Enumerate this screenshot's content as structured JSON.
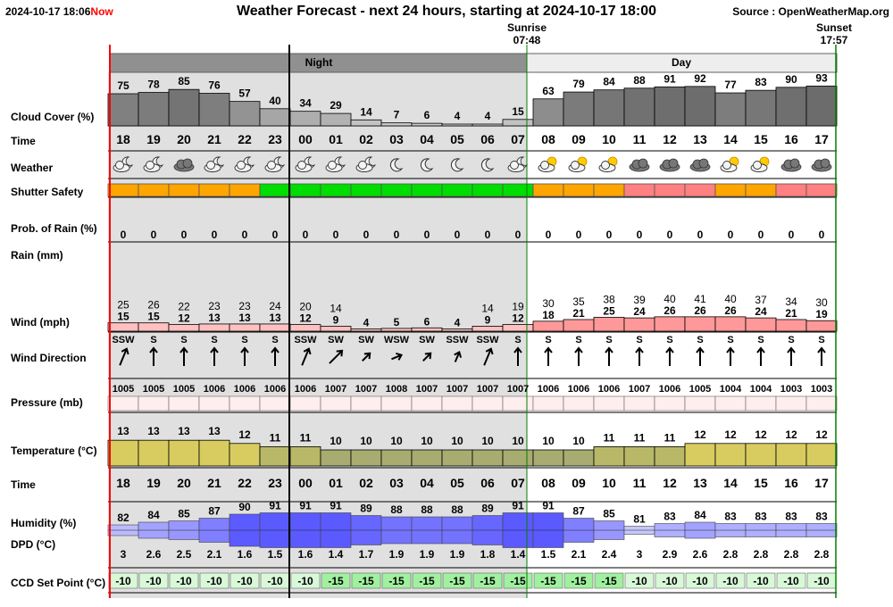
{
  "header": {
    "datetime": "2024-10-17 18:06",
    "now_label": "Now",
    "title": "Weather Forecast - next 24 hours, starting at 2024-10-17 18:00",
    "source": "Source : OpenWeatherMap.org"
  },
  "sun": {
    "sunrise_label": "Sunrise",
    "sunrise_time": "07:48",
    "sunset_label": "Sunset",
    "sunset_time": "17:57"
  },
  "periods": {
    "night": "Night",
    "day": "Day"
  },
  "row_labels": {
    "cloud": "Cloud Cover (%)",
    "time": "Time",
    "weather": "Weather",
    "shutter": "Shutter Safety",
    "prob_rain": "Prob. of Rain (%)",
    "rain": "Rain (mm)",
    "wind": "Wind (mph)",
    "wind_dir": "Wind Direction",
    "pressure": "Pressure (mb)",
    "temperature": "Temperature (°C)",
    "time2": "Time",
    "humidity": "Humidity (%)",
    "dpd": "DPD (°C)",
    "ccd": "CCD Set Point (°C)"
  },
  "colors": {
    "shutter_orange": "#ffa500",
    "shutter_green": "#00dd00",
    "shutter_red": "#ff8080",
    "night_bg": "#e0e0e0",
    "gust_fill": "#ffc0c0",
    "gust_fill_strong": "#ff9999",
    "now_line": "#ff0000",
    "day_border": "#008000"
  },
  "chart_data": {
    "type": "table",
    "hours": [
      "18",
      "19",
      "20",
      "21",
      "22",
      "23",
      "00",
      "01",
      "02",
      "03",
      "04",
      "05",
      "06",
      "07",
      "08",
      "09",
      "10",
      "11",
      "12",
      "13",
      "14",
      "15",
      "16",
      "17"
    ],
    "cloud_cover": [
      75,
      78,
      85,
      76,
      57,
      40,
      34,
      29,
      14,
      7,
      6,
      4,
      4,
      15,
      63,
      79,
      84,
      88,
      91,
      92,
      77,
      83,
      90,
      93
    ],
    "weather_icons": [
      "partly-cloudy-night",
      "partly-cloudy-night",
      "cloudy",
      "partly-cloudy-night",
      "partly-cloudy-night",
      "partly-cloudy-night",
      "partly-cloudy-night",
      "partly-cloudy-night",
      "partly-cloudy-night",
      "clear-night",
      "clear-night",
      "clear-night",
      "clear-night",
      "partly-cloudy-night",
      "partly-cloudy-day",
      "partly-cloudy-day",
      "partly-cloudy-day",
      "cloudy",
      "cloudy",
      "cloudy",
      "partly-cloudy-day",
      "partly-cloudy-day",
      "cloudy",
      "cloudy"
    ],
    "shutter_safety": [
      "orange",
      "orange",
      "orange",
      "orange",
      "orange",
      "green",
      "green",
      "green",
      "green",
      "green",
      "green",
      "green",
      "green",
      "green",
      "orange",
      "orange",
      "orange",
      "red",
      "red",
      "red",
      "orange",
      "orange",
      "red",
      "red"
    ],
    "prob_rain": [
      0,
      0,
      0,
      0,
      0,
      0,
      0,
      0,
      0,
      0,
      0,
      0,
      0,
      0,
      0,
      0,
      0,
      0,
      0,
      0,
      0,
      0,
      0,
      0
    ],
    "wind_gust": [
      25,
      26,
      22,
      23,
      23,
      24,
      20,
      14,
      null,
      null,
      null,
      null,
      14,
      19,
      30,
      35,
      38,
      39,
      40,
      41,
      40,
      37,
      34,
      30
    ],
    "wind_speed": [
      15,
      15,
      12,
      13,
      13,
      13,
      12,
      9,
      4,
      5,
      6,
      4,
      9,
      12,
      18,
      21,
      25,
      24,
      26,
      26,
      26,
      24,
      21,
      19
    ],
    "wind_dir": [
      "SSW",
      "S",
      "S",
      "S",
      "S",
      "S",
      "SSW",
      "SW",
      "SW",
      "WSW",
      "SW",
      "SSW",
      "SSW",
      "S",
      "S",
      "S",
      "S",
      "S",
      "S",
      "S",
      "S",
      "S",
      "S",
      "S"
    ],
    "pressure": [
      1005,
      1005,
      1005,
      1006,
      1006,
      1006,
      1006,
      1007,
      1007,
      1008,
      1007,
      1007,
      1007,
      1007,
      1006,
      1006,
      1006,
      1007,
      1006,
      1005,
      1004,
      1004,
      1003,
      1003
    ],
    "temperature": [
      13,
      13,
      13,
      13,
      12,
      11,
      11,
      10,
      10,
      10,
      10,
      10,
      10,
      10,
      10,
      10,
      11,
      11,
      11,
      12,
      12,
      12,
      12,
      12
    ],
    "humidity": [
      82,
      84,
      85,
      87,
      90,
      91,
      91,
      91,
      89,
      88,
      88,
      88,
      89,
      91,
      91,
      87,
      85,
      81,
      83,
      84,
      83,
      83,
      83,
      83
    ],
    "dpd": [
      3,
      2.6,
      2.5,
      2.1,
      1.6,
      1.5,
      1.6,
      1.4,
      1.7,
      1.9,
      1.9,
      1.9,
      1.8,
      1.4,
      1.5,
      2.1,
      2.4,
      3,
      2.9,
      2.6,
      2.8,
      2.8,
      2.8,
      2.8
    ],
    "ccd_set_point": [
      -10,
      -10,
      -10,
      -10,
      -10,
      -10,
      -10,
      -15,
      -15,
      -15,
      -15,
      -15,
      -15,
      -15,
      -15,
      -15,
      -15,
      -10,
      -10,
      -10,
      -10,
      -10,
      -10,
      -10
    ]
  }
}
